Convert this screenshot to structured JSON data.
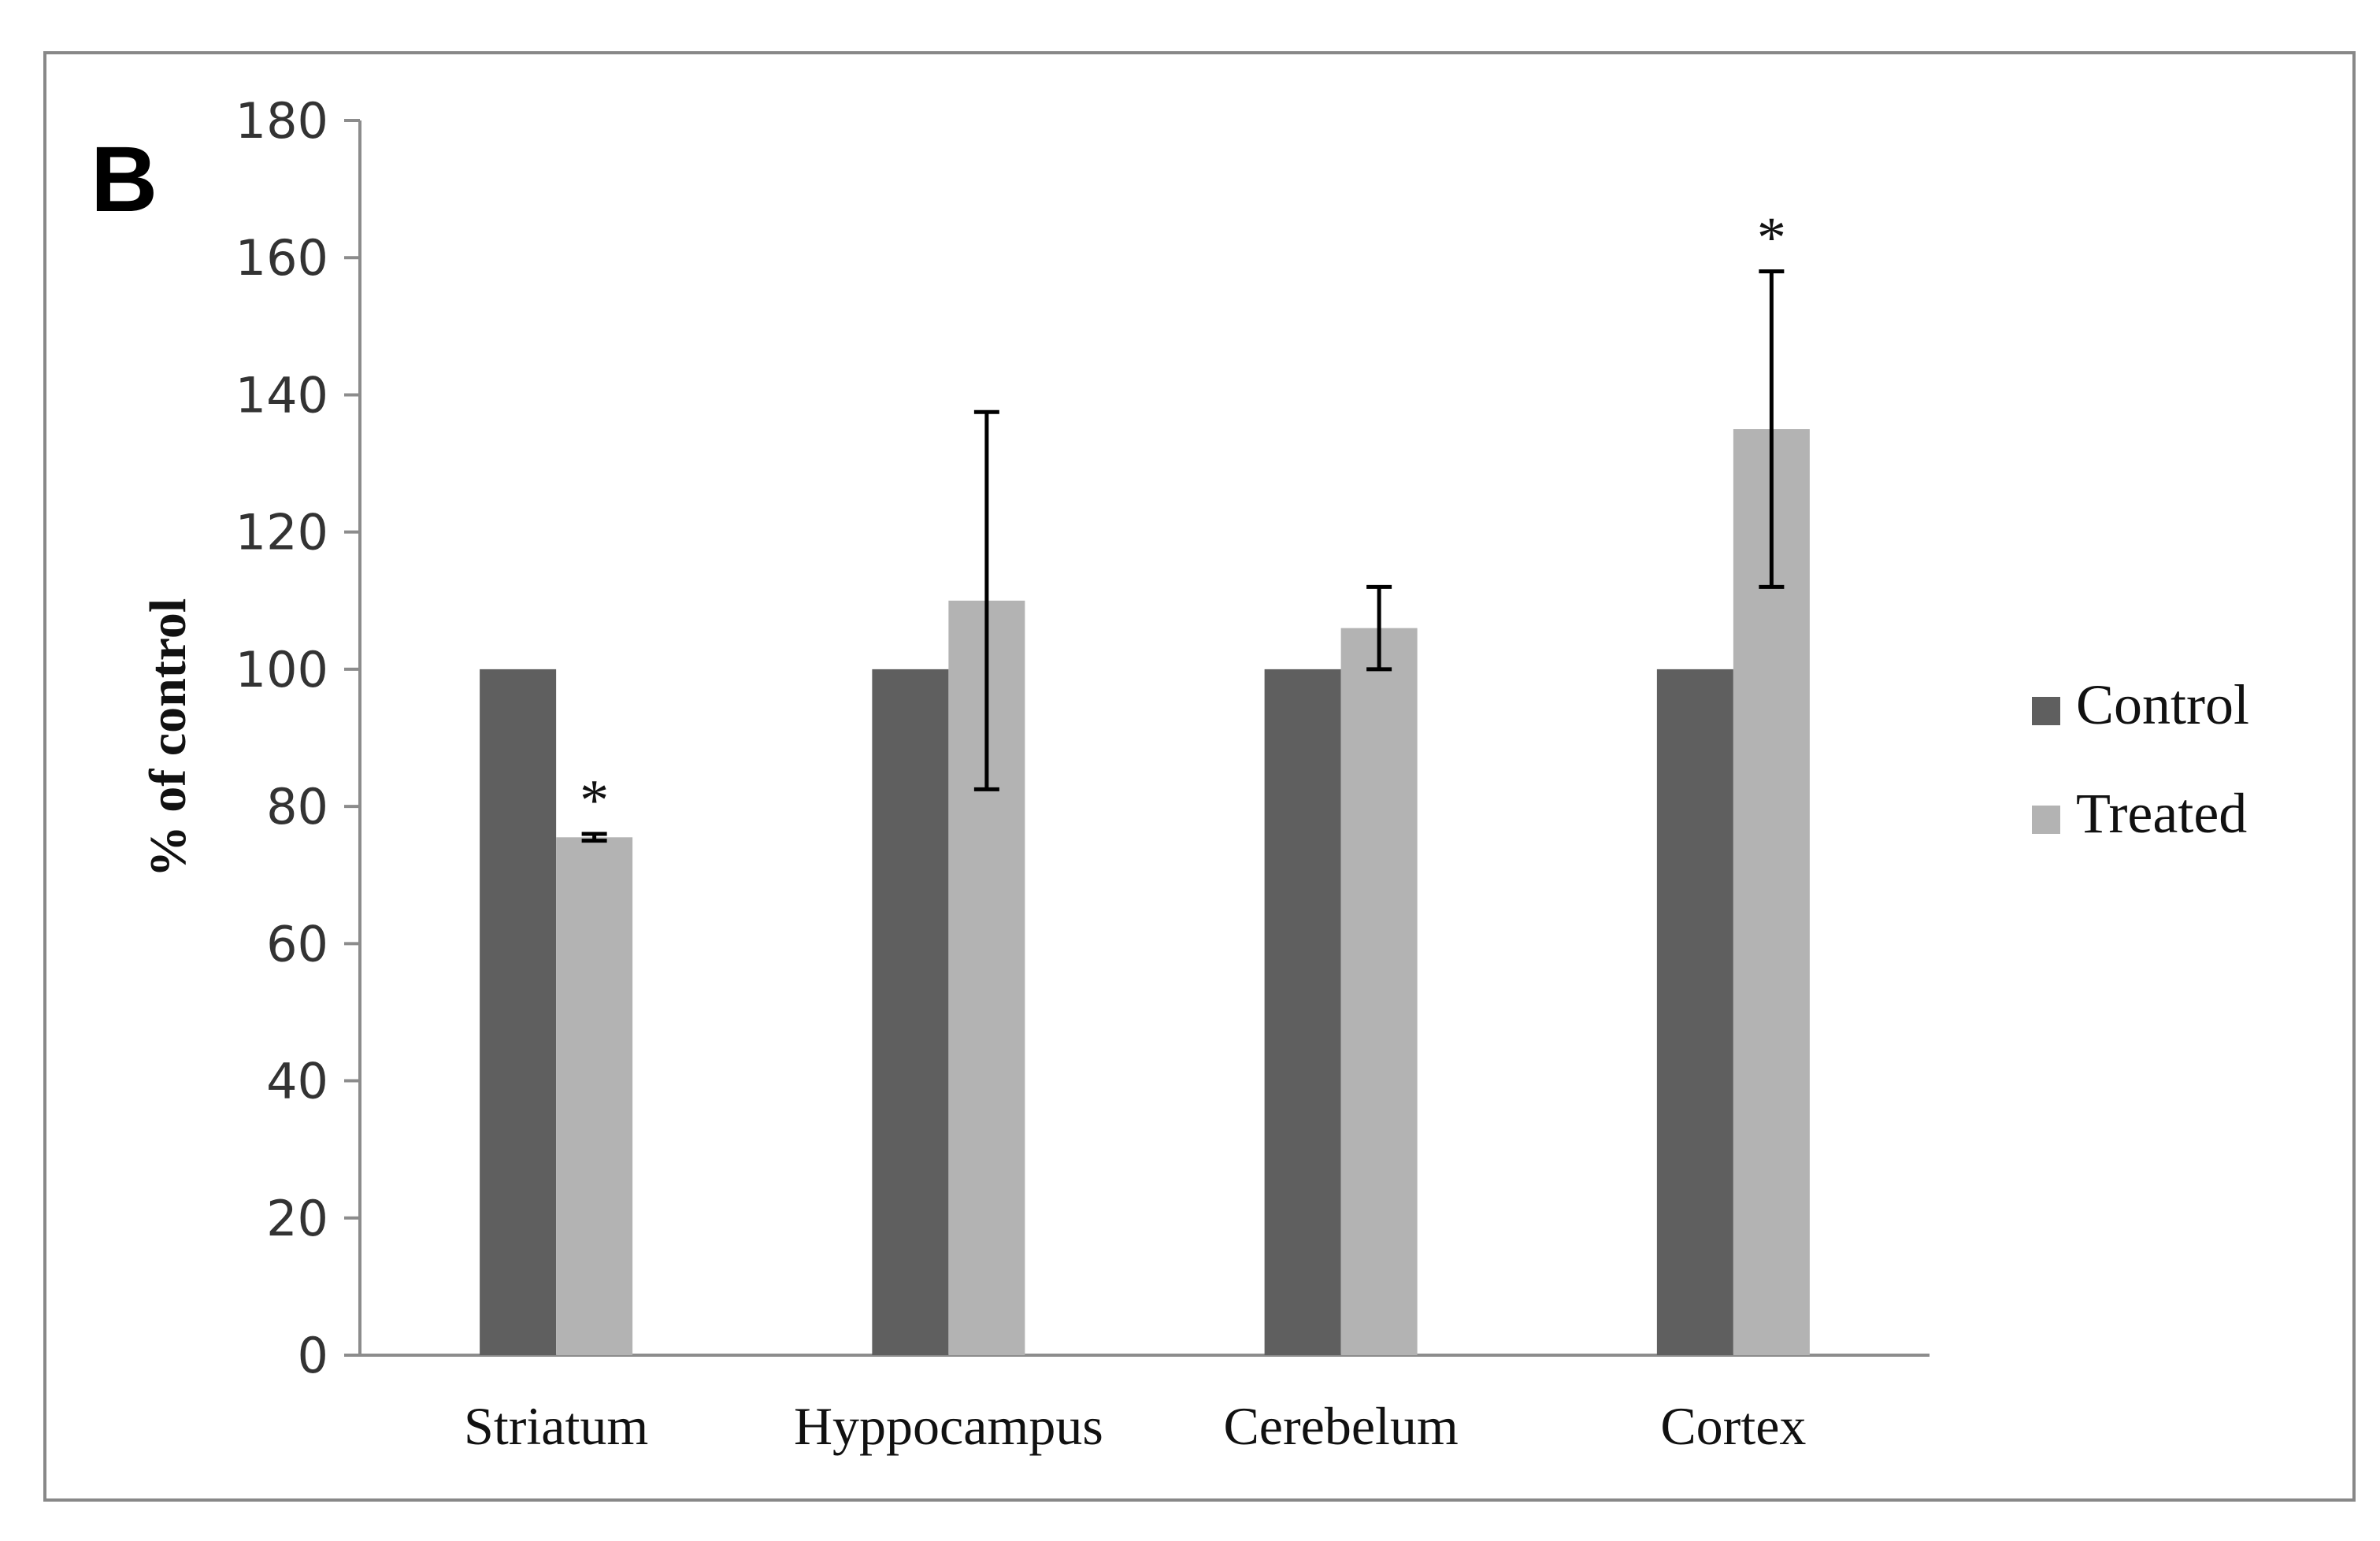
{
  "chart_data": {
    "type": "bar",
    "panel_label": "B",
    "title": "",
    "xlabel": "",
    "ylabel": "% of control",
    "ylim": [
      0,
      180
    ],
    "yticks": [
      0,
      20,
      40,
      60,
      80,
      100,
      120,
      140,
      160,
      180
    ],
    "categories": [
      "Striatum",
      "Hyppocampus",
      "Cerebelum",
      "Cortex"
    ],
    "series": [
      {
        "name": "Control",
        "color": "#5f5f5f",
        "values": [
          100,
          100,
          100,
          100
        ]
      },
      {
        "name": "Treated",
        "color": "#b3b3b3",
        "values": [
          75.5,
          110,
          106,
          135
        ],
        "errors": [
          0.5,
          27.5,
          6,
          23
        ]
      }
    ],
    "annotations": [
      {
        "text": "*",
        "series": "Treated",
        "category": "Striatum"
      },
      {
        "text": "*",
        "series": "Treated",
        "category": "Cortex"
      }
    ],
    "legend_position": "right",
    "grid": false
  }
}
